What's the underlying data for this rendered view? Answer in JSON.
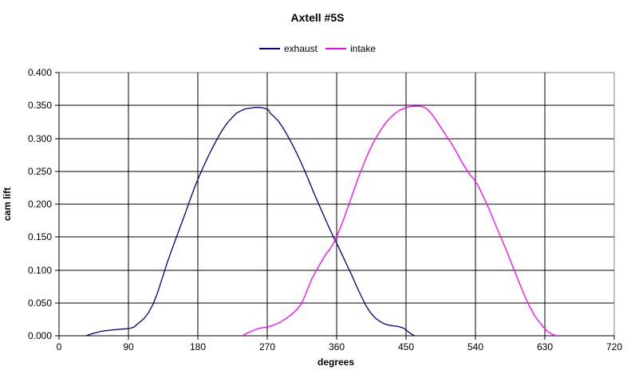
{
  "title": "Axtell #5S",
  "legend": [
    {
      "label": "exhaust",
      "color": "#000080"
    },
    {
      "label": "intake",
      "color": "#FF00FF"
    }
  ],
  "colors": {
    "background": "#FFFFFF",
    "gridline": "#000000",
    "axis": "#000000",
    "plot_border": "#808080",
    "exhaust": "#000080",
    "intake": "#FF00FF",
    "text": "#000000"
  },
  "chart_data": {
    "type": "line",
    "title": "Axtell #5S",
    "xlabel": "degrees",
    "ylabel": "cam lift",
    "xlim": [
      0,
      720
    ],
    "ylim": [
      0.0,
      0.4
    ],
    "x_ticks": [
      0,
      90,
      180,
      270,
      360,
      450,
      540,
      630,
      720
    ],
    "y_ticks": [
      0.0,
      0.05,
      0.1,
      0.15,
      0.2,
      0.25,
      0.3,
      0.35,
      0.4
    ],
    "y_tick_decimals": 3,
    "grid": true,
    "legend_position": "top-center",
    "series": [
      {
        "name": "exhaust",
        "color": "#000080",
        "points": [
          [
            35,
            0.0
          ],
          [
            45,
            0.004
          ],
          [
            56,
            0.007
          ],
          [
            70,
            0.009
          ],
          [
            80,
            0.01
          ],
          [
            91,
            0.011
          ],
          [
            97,
            0.013
          ],
          [
            104,
            0.02
          ],
          [
            110,
            0.026
          ],
          [
            116,
            0.035
          ],
          [
            122,
            0.048
          ],
          [
            128,
            0.066
          ],
          [
            134,
            0.088
          ],
          [
            140,
            0.11
          ],
          [
            146,
            0.13
          ],
          [
            152,
            0.149
          ],
          [
            158,
            0.168
          ],
          [
            164,
            0.187
          ],
          [
            170,
            0.207
          ],
          [
            176,
            0.226
          ],
          [
            182,
            0.243
          ],
          [
            188,
            0.259
          ],
          [
            194,
            0.274
          ],
          [
            200,
            0.288
          ],
          [
            206,
            0.301
          ],
          [
            212,
            0.313
          ],
          [
            218,
            0.323
          ],
          [
            224,
            0.331
          ],
          [
            230,
            0.338
          ],
          [
            236,
            0.342
          ],
          [
            242,
            0.345
          ],
          [
            248,
            0.346
          ],
          [
            254,
            0.347
          ],
          [
            260,
            0.347
          ],
          [
            266,
            0.346
          ],
          [
            271,
            0.344
          ],
          [
            274,
            0.338
          ],
          [
            278,
            0.334
          ],
          [
            284,
            0.327
          ],
          [
            290,
            0.317
          ],
          [
            296,
            0.305
          ],
          [
            302,
            0.292
          ],
          [
            308,
            0.278
          ],
          [
            314,
            0.263
          ],
          [
            320,
            0.247
          ],
          [
            326,
            0.23
          ],
          [
            332,
            0.213
          ],
          [
            338,
            0.197
          ],
          [
            344,
            0.181
          ],
          [
            350,
            0.165
          ],
          [
            356,
            0.15
          ],
          [
            362,
            0.136
          ],
          [
            368,
            0.121
          ],
          [
            374,
            0.106
          ],
          [
            380,
            0.091
          ],
          [
            386,
            0.075
          ],
          [
            392,
            0.06
          ],
          [
            398,
            0.046
          ],
          [
            404,
            0.035
          ],
          [
            410,
            0.027
          ],
          [
            416,
            0.022
          ],
          [
            422,
            0.018
          ],
          [
            428,
            0.016
          ],
          [
            434,
            0.015
          ],
          [
            440,
            0.014
          ],
          [
            446,
            0.012
          ],
          [
            450,
            0.009
          ],
          [
            454,
            0.005
          ],
          [
            458,
            0.002
          ],
          [
            461,
            0.0
          ]
        ]
      },
      {
        "name": "intake",
        "color": "#FF00FF",
        "points": [
          [
            238,
            0.0
          ],
          [
            244,
            0.004
          ],
          [
            250,
            0.007
          ],
          [
            256,
            0.01
          ],
          [
            262,
            0.012
          ],
          [
            270,
            0.013
          ],
          [
            278,
            0.016
          ],
          [
            286,
            0.02
          ],
          [
            294,
            0.026
          ],
          [
            302,
            0.033
          ],
          [
            308,
            0.039
          ],
          [
            314,
            0.048
          ],
          [
            318,
            0.058
          ],
          [
            322,
            0.07
          ],
          [
            328,
            0.087
          ],
          [
            334,
            0.1
          ],
          [
            340,
            0.112
          ],
          [
            346,
            0.124
          ],
          [
            352,
            0.133
          ],
          [
            358,
            0.145
          ],
          [
            364,
            0.162
          ],
          [
            370,
            0.18
          ],
          [
            376,
            0.2
          ],
          [
            382,
            0.22
          ],
          [
            388,
            0.24
          ],
          [
            394,
            0.258
          ],
          [
            400,
            0.275
          ],
          [
            406,
            0.29
          ],
          [
            412,
            0.303
          ],
          [
            418,
            0.314
          ],
          [
            424,
            0.324
          ],
          [
            430,
            0.332
          ],
          [
            436,
            0.338
          ],
          [
            442,
            0.343
          ],
          [
            448,
            0.346
          ],
          [
            454,
            0.348
          ],
          [
            460,
            0.349
          ],
          [
            466,
            0.349
          ],
          [
            472,
            0.348
          ],
          [
            478,
            0.344
          ],
          [
            484,
            0.336
          ],
          [
            490,
            0.326
          ],
          [
            496,
            0.315
          ],
          [
            502,
            0.304
          ],
          [
            508,
            0.294
          ],
          [
            514,
            0.282
          ],
          [
            520,
            0.269
          ],
          [
            526,
            0.257
          ],
          [
            532,
            0.246
          ],
          [
            538,
            0.238
          ],
          [
            544,
            0.227
          ],
          [
            550,
            0.212
          ],
          [
            556,
            0.197
          ],
          [
            562,
            0.18
          ],
          [
            568,
            0.163
          ],
          [
            574,
            0.147
          ],
          [
            580,
            0.13
          ],
          [
            586,
            0.112
          ],
          [
            592,
            0.095
          ],
          [
            598,
            0.077
          ],
          [
            604,
            0.06
          ],
          [
            610,
            0.045
          ],
          [
            616,
            0.032
          ],
          [
            622,
            0.022
          ],
          [
            628,
            0.013
          ],
          [
            634,
            0.006
          ],
          [
            640,
            0.002
          ],
          [
            645,
            0.0
          ]
        ]
      }
    ]
  }
}
